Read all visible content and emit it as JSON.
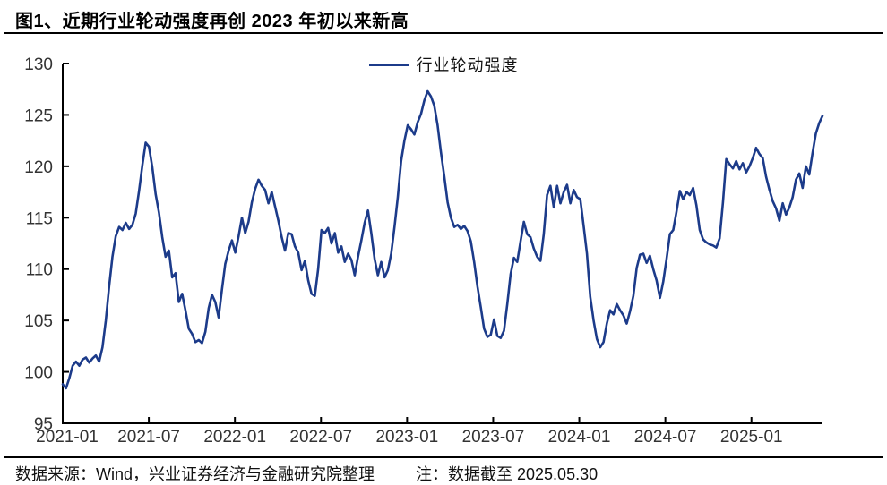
{
  "figure": {
    "title": "图1、近期行业轮动强度再创 2023 年初以来新高",
    "source_note": "数据来源：Wind，兴业证券经济与金融研究院整理",
    "date_note": "注：数据截至 2025.05.30"
  },
  "chart_data": {
    "type": "line",
    "title": "图1、近期行业轮动强度再创 2023 年初以来新高",
    "legend": [
      "行业轮动强度"
    ],
    "legend_position": "top-center",
    "grid": false,
    "ylim": [
      95,
      130
    ],
    "y_ticks": [
      95,
      100,
      105,
      110,
      115,
      120,
      125,
      130
    ],
    "x_tick_labels": [
      "2021-01",
      "2021-07",
      "2022-01",
      "2022-07",
      "2023-01",
      "2023-07",
      "2024-01",
      "2024-07",
      "2025-01"
    ],
    "x_tick_months": [
      0,
      6,
      12,
      18,
      24,
      30,
      36,
      42,
      48
    ],
    "x_total_months": 52.95,
    "colors": {
      "line": "#1c3b8a",
      "axis": "#000000",
      "tick_label": "#333333"
    },
    "series": [
      {
        "name": "行业轮动强度",
        "start": "2021-01",
        "end": "2025-05-30",
        "interval": "weekly",
        "values": [
          98.8,
          98.4,
          99.4,
          100.6,
          101.0,
          100.6,
          101.2,
          101.4,
          100.9,
          101.3,
          101.6,
          101.0,
          102.4,
          105.0,
          108.3,
          111.2,
          113.2,
          114.1,
          113.8,
          114.5,
          113.9,
          114.3,
          115.4,
          117.6,
          120.1,
          122.3,
          121.9,
          119.9,
          117.3,
          115.5,
          113.1,
          111.2,
          111.8,
          109.2,
          109.6,
          106.8,
          107.6,
          106.0,
          104.2,
          103.7,
          102.9,
          103.1,
          102.8,
          103.9,
          106.2,
          107.5,
          106.8,
          105.3,
          108.0,
          110.5,
          111.8,
          112.8,
          111.6,
          113.2,
          115.0,
          113.5,
          114.6,
          116.5,
          117.8,
          118.7,
          118.1,
          117.7,
          116.4,
          117.5,
          116.1,
          114.7,
          113.1,
          111.8,
          113.5,
          113.4,
          112.2,
          111.6,
          109.9,
          110.8,
          108.9,
          107.6,
          107.4,
          110.0,
          113.8,
          113.5,
          114.0,
          112.5,
          113.5,
          111.6,
          112.2,
          110.7,
          111.5,
          110.9,
          109.4,
          111.2,
          112.8,
          114.5,
          115.7,
          113.5,
          111.0,
          109.4,
          110.7,
          109.2,
          109.9,
          111.5,
          114.1,
          117.0,
          120.5,
          122.5,
          124.0,
          123.6,
          123.1,
          124.3,
          125.1,
          126.4,
          127.3,
          126.8,
          125.9,
          124.0,
          121.4,
          119.0,
          116.5,
          115.0,
          114.1,
          114.3,
          113.9,
          114.2,
          113.7,
          112.7,
          110.7,
          108.3,
          106.3,
          104.2,
          103.4,
          103.6,
          105.1,
          103.5,
          103.3,
          104.0,
          106.6,
          109.5,
          111.1,
          110.7,
          112.7,
          114.6,
          113.4,
          113.1,
          112.0,
          111.2,
          110.8,
          113.4,
          117.2,
          118.1,
          116.0,
          118.1,
          116.4,
          117.5,
          118.2,
          116.4,
          117.7,
          117.0,
          116.8,
          114.2,
          111.5,
          107.3,
          105.0,
          103.2,
          102.4,
          102.9,
          104.7,
          106.0,
          105.6,
          106.6,
          106.0,
          105.5,
          104.7,
          105.9,
          107.4,
          110.1,
          111.4,
          111.5,
          110.6,
          111.3,
          110.0,
          108.9,
          107.2,
          108.8,
          111.0,
          113.4,
          113.8,
          115.6,
          117.6,
          116.8,
          117.5,
          117.2,
          117.9,
          116.2,
          113.8,
          112.9,
          112.6,
          112.4,
          112.3,
          112.1,
          113.0,
          116.5,
          120.7,
          120.2,
          119.8,
          120.5,
          119.7,
          120.3,
          119.4,
          120.0,
          120.8,
          121.8,
          121.2,
          120.8,
          119.0,
          117.7,
          116.6,
          115.9,
          114.7,
          116.4,
          115.3,
          116.0,
          117.0,
          118.7,
          119.3,
          117.9,
          120.0,
          119.2,
          121.3,
          123.2,
          124.2,
          124.9
        ]
      }
    ]
  }
}
